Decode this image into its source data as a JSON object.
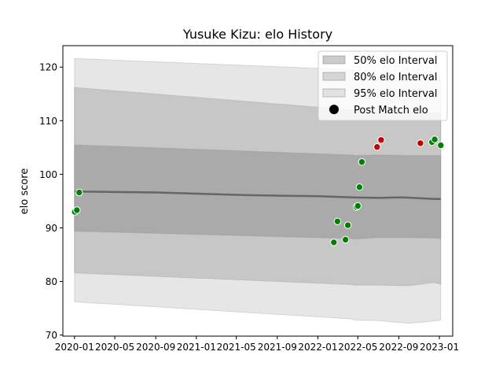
{
  "chart_data": {
    "type": "scatter",
    "title": "Yusuke Kizu: elo History",
    "xlabel": "",
    "ylabel": "elo score",
    "xlim": [
      "2019-11-27",
      "2023-02-10"
    ],
    "ylim": [
      69.8,
      124
    ],
    "x_ticks": [
      "2020-01",
      "2020-05",
      "2020-09",
      "2021-01",
      "2021-05",
      "2021-09",
      "2022-01",
      "2022-05",
      "2022-09",
      "2023-01"
    ],
    "y_ticks": [
      70,
      80,
      90,
      100,
      110,
      120
    ],
    "legend": {
      "placement": "upper right",
      "entries": [
        "50% elo Interval",
        "80% elo Interval",
        "95% elo Interval",
        "Post Match elo"
      ]
    },
    "colors": {
      "band": "#808080",
      "mean_line": "#666666",
      "win": "#008000",
      "loss": "#c00000",
      "marker_edge": "#ffffff"
    },
    "series": [
      {
        "name": "95% elo Interval",
        "band_alpha": 0.2,
        "x": [
          "2020-01-01",
          "2022-04-15",
          "2022-04-20",
          "2022-07-01",
          "2022-10-01",
          "2022-12-15",
          "2023-01-05"
        ],
        "lower": [
          76.2,
          73.0,
          72.8,
          72.7,
          72.2,
          72.6,
          72.8
        ],
        "upper": [
          121.6,
          119.5,
          117.8,
          117.9,
          118.1,
          118.0,
          117.9
        ]
      },
      {
        "name": "80% elo Interval",
        "band_alpha": 0.3,
        "x": [
          "2020-01-01",
          "2022-04-15",
          "2022-04-20",
          "2022-07-01",
          "2022-10-01",
          "2022-12-15",
          "2023-01-05"
        ],
        "lower": [
          81.6,
          79.4,
          79.3,
          79.3,
          79.2,
          79.8,
          79.5
        ],
        "upper": [
          116.2,
          112.0,
          111.5,
          111.4,
          111.5,
          111.4,
          111.5
        ]
      },
      {
        "name": "50% elo Interval",
        "band_alpha": 0.4,
        "x": [
          "2020-01-01",
          "2022-04-15",
          "2022-04-20",
          "2022-07-01",
          "2022-10-01",
          "2022-12-15",
          "2023-01-05"
        ],
        "lower": [
          89.4,
          88.0,
          87.9,
          88.2,
          88.2,
          88.1,
          88.0
        ],
        "upper": [
          105.5,
          103.6,
          103.5,
          103.6,
          103.5,
          103.5,
          103.5
        ]
      },
      {
        "name": "mean",
        "x": [
          "2020-01-01",
          "2020-09-01",
          "2021-06-01",
          "2022-01-01",
          "2022-04-15",
          "2022-07-01",
          "2022-09-15",
          "2022-12-15",
          "2023-01-05"
        ],
        "values": [
          96.8,
          96.6,
          96.1,
          95.9,
          95.7,
          95.6,
          95.7,
          95.4,
          95.4
        ]
      },
      {
        "name": "Post Match elo",
        "points": [
          {
            "x": "2020-01-02",
            "y": 93.0,
            "result": "win"
          },
          {
            "x": "2020-01-08",
            "y": 93.3,
            "result": "win"
          },
          {
            "x": "2020-01-15",
            "y": 96.6,
            "result": "win"
          },
          {
            "x": "2022-02-18",
            "y": 87.3,
            "result": "win"
          },
          {
            "x": "2022-03-01",
            "y": 91.2,
            "result": "win"
          },
          {
            "x": "2022-03-25",
            "y": 87.8,
            "result": "win"
          },
          {
            "x": "2022-04-01",
            "y": 90.5,
            "result": "win"
          },
          {
            "x": "2022-04-27",
            "y": 93.9,
            "result": "win"
          },
          {
            "x": "2022-05-01",
            "y": 94.1,
            "result": "win"
          },
          {
            "x": "2022-05-06",
            "y": 97.6,
            "result": "win"
          },
          {
            "x": "2022-05-13",
            "y": 102.3,
            "result": "win"
          },
          {
            "x": "2022-06-28",
            "y": 105.1,
            "result": "loss"
          },
          {
            "x": "2022-07-10",
            "y": 106.4,
            "result": "loss"
          },
          {
            "x": "2022-11-05",
            "y": 105.8,
            "result": "loss"
          },
          {
            "x": "2022-12-10",
            "y": 106.0,
            "result": "win"
          },
          {
            "x": "2022-12-18",
            "y": 106.5,
            "result": "win"
          },
          {
            "x": "2023-01-05",
            "y": 105.4,
            "result": "win"
          }
        ]
      }
    ]
  }
}
